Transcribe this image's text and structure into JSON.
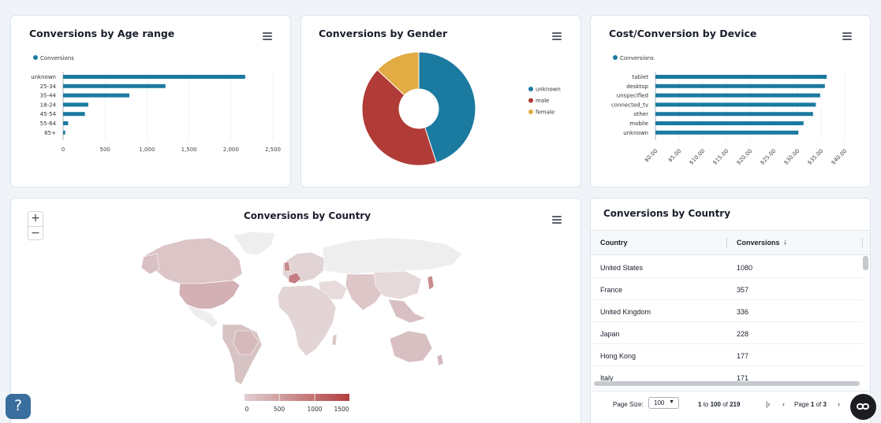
{
  "colors": {
    "blue": "#1b7aa0",
    "red": "#b13b36",
    "yellow": "#e2ab43",
    "map_low": "#e0cfd0",
    "map_high": "#b33f3f"
  },
  "age_chart": {
    "title": "Conversions by Age range",
    "menu_icon": "hamburger-menu-icon",
    "legend": "Conversions",
    "chart_data": {
      "type": "bar",
      "orientation": "horizontal",
      "categories": [
        "unknown",
        "25-34",
        "35-44",
        "18-24",
        "45-54",
        "55-64",
        "65+"
      ],
      "values": [
        2170,
        1220,
        790,
        300,
        260,
        60,
        25
      ],
      "xlim": [
        0,
        2500
      ],
      "xticks": [
        "0",
        "500",
        "1,000",
        "1,500",
        "2,000",
        "2,500"
      ],
      "grid": true,
      "legend_position": "top-left"
    }
  },
  "gender_chart": {
    "title": "Conversions by Gender",
    "menu_icon": "hamburger-menu-icon",
    "chart_data": {
      "type": "pie",
      "donut": true,
      "categories": [
        "unknown",
        "male",
        "female"
      ],
      "values": [
        45,
        42,
        13
      ],
      "colors": [
        "#1b7aa0",
        "#b13b36",
        "#e2ab43"
      ],
      "legend_position": "right"
    }
  },
  "device_chart": {
    "title": "Cost/Conversion by Device",
    "menu_icon": "hamburger-menu-icon",
    "legend": "Conversions",
    "chart_data": {
      "type": "bar",
      "orientation": "horizontal",
      "categories": [
        "tablet",
        "desktop",
        "unspecified",
        "connected_tv",
        "other",
        "mobile",
        "unknown"
      ],
      "values": [
        36.2,
        35.8,
        34.8,
        33.9,
        33.3,
        31.3,
        30.2
      ],
      "xlim": [
        0,
        40
      ],
      "xticks": [
        "$0.00",
        "$5.00",
        "$10.00",
        "$15.00",
        "$20.00",
        "$25.00",
        "$30.00",
        "$35.00",
        "$40.00"
      ],
      "grid": true,
      "legend_position": "top-left"
    }
  },
  "country_map": {
    "title": "Conversions by Country",
    "menu_icon": "hamburger-menu-icon",
    "zoom_in": "+",
    "zoom_out": "−",
    "color_scale": [
      "0",
      "500",
      "1000",
      "1500"
    ]
  },
  "country_table": {
    "title": "Conversions by Country",
    "columns": [
      "Country",
      "Conversions"
    ],
    "sort_icon": "arrow-down-icon",
    "rows": [
      [
        "United States",
        "1080"
      ],
      [
        "France",
        "357"
      ],
      [
        "United Kingdom",
        "336"
      ],
      [
        "Japan",
        "228"
      ],
      [
        "Hong Kong",
        "177"
      ],
      [
        "Italy",
        "171"
      ]
    ],
    "footer": {
      "page_size_label": "Page Size:",
      "page_size": "100",
      "range_from": "1",
      "range_to": "100",
      "range_total": "219",
      "to_word": "to",
      "of_word": "of",
      "page_word": "Page",
      "page_current": "1",
      "page_total": "3"
    }
  },
  "help_label": "?"
}
